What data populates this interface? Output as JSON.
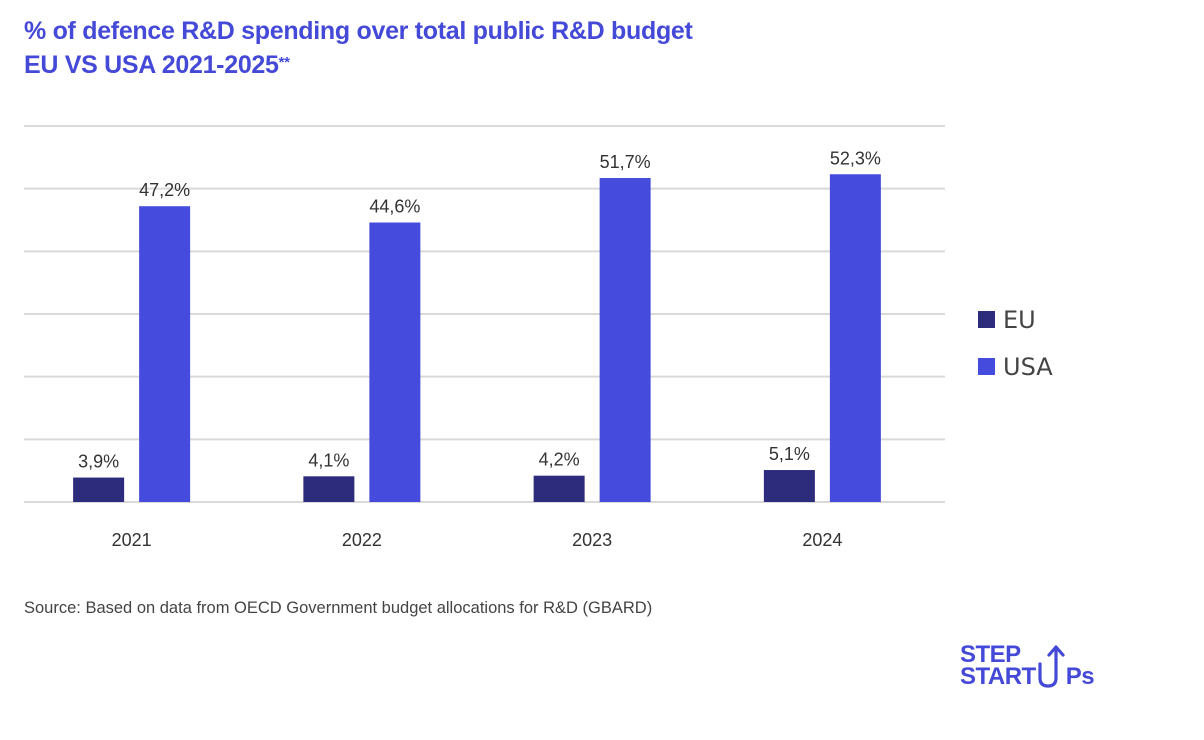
{
  "title": {
    "line1": "% of defence R&D spending over total public R&D budget",
    "line2": "EU VS USA 2021-2025",
    "line2_suffix": "**"
  },
  "source": "Source: Based on data from OECD Government budget allocations for R&D (GBARD)",
  "logo": {
    "line1": "STEP",
    "line2": "STARTUPS",
    "line2_prefix": "START",
    "line2_suffix": "Ps"
  },
  "colors": {
    "title": "#4549d8",
    "eu": "#2d2b7c",
    "usa": "#454bdc",
    "grid": "#d9d9d9",
    "text": "#333333"
  },
  "chart_data": {
    "type": "bar",
    "title": "% of defence R&D spending over total public R&D budget EU VS USA 2021-2025**",
    "xlabel": "",
    "ylabel": "",
    "categories": [
      "2021",
      "2022",
      "2023",
      "2024"
    ],
    "series": [
      {
        "name": "EU",
        "values": [
          3.9,
          4.1,
          4.2,
          5.1
        ],
        "labels": [
          "3,9%",
          "4,1%",
          "4,2%",
          "5,1%"
        ],
        "color": "#2d2b7c"
      },
      {
        "name": "USA",
        "values": [
          47.2,
          44.6,
          51.7,
          52.3
        ],
        "labels": [
          "47,2%",
          "44,6%",
          "51,7%",
          "52,3%"
        ],
        "color": "#454bdc"
      }
    ],
    "ylim": [
      0,
      60
    ],
    "yticks": [
      0,
      10,
      20,
      30,
      40,
      50,
      60
    ],
    "ytick_labels_visible": false,
    "grid": true,
    "legend": {
      "position": "right",
      "entries": [
        "EU",
        "USA"
      ]
    }
  }
}
